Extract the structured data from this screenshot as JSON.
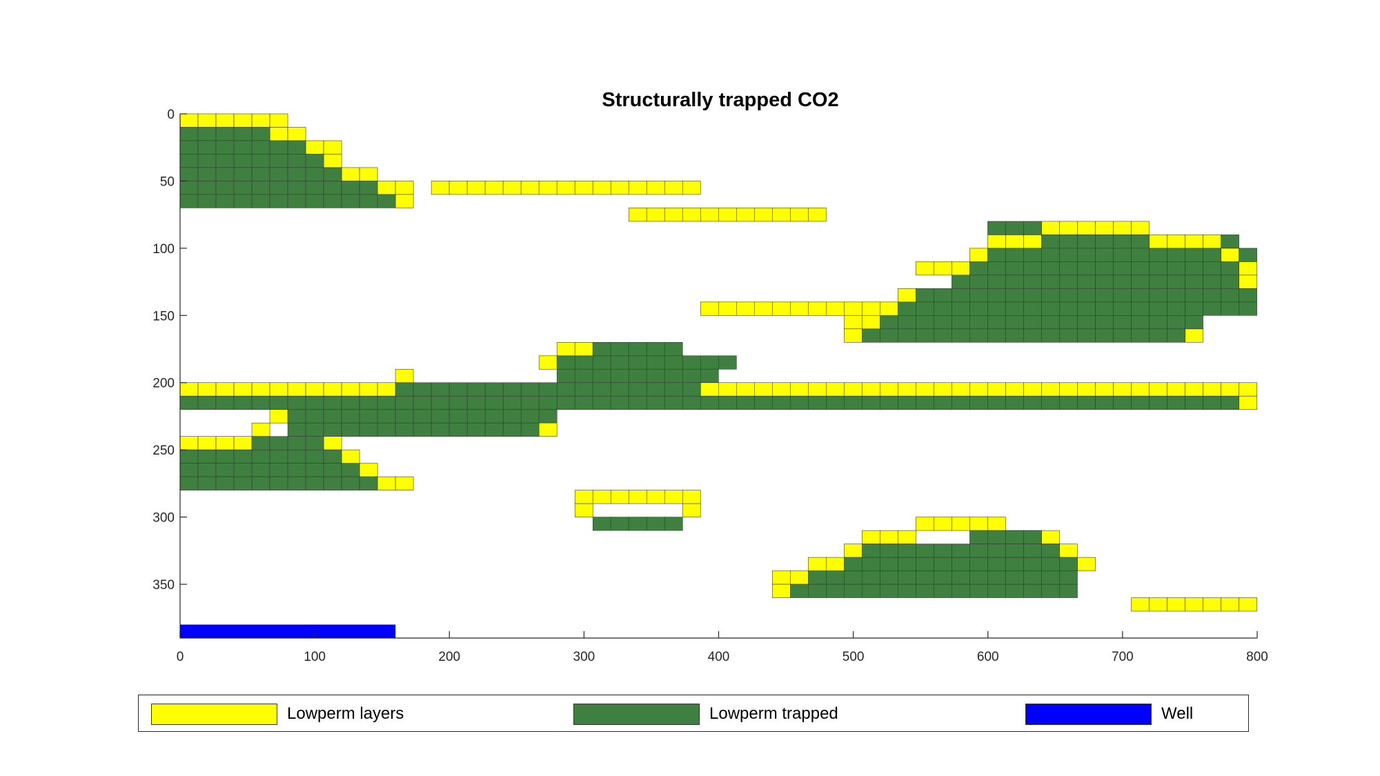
{
  "chart_data": {
    "type": "heatmap",
    "title": "Structurally trapped CO2",
    "xlim": [
      0,
      800
    ],
    "ylim": [
      0,
      390
    ],
    "y_reversed": true,
    "xticks": [
      0,
      100,
      200,
      300,
      400,
      500,
      600,
      700,
      800
    ],
    "yticks": [
      0,
      50,
      100,
      150,
      200,
      250,
      300,
      350
    ],
    "cell_size": {
      "dx": 13.33,
      "dy": 10
    },
    "colors": {
      "Lowperm layers": "#ffff00",
      "Lowperm trapped": "#3f7f3f",
      "Well": "#0000ff"
    },
    "legend": {
      "location": "bottom",
      "entries": [
        {
          "label": "Lowperm layers",
          "color": "#ffff00"
        },
        {
          "label": "Lowperm trapped",
          "color": "#3f7f3f"
        },
        {
          "label": "Well",
          "color": "#0000ff"
        }
      ]
    },
    "series": [
      {
        "name": "Lowperm layers",
        "color": "#ffff00",
        "cells": [
          [
            0,
            0,
            0,
            5
          ],
          [
            1,
            5,
            1,
            6
          ],
          [
            2,
            7,
            2,
            8
          ],
          [
            3,
            8,
            3,
            8
          ],
          [
            4,
            9,
            4,
            10
          ],
          [
            5,
            11,
            5,
            12
          ],
          [
            5,
            14,
            5,
            28
          ],
          [
            6,
            12,
            6,
            12
          ],
          [
            7,
            25,
            7,
            35
          ],
          [
            8,
            48,
            8,
            53
          ],
          [
            9,
            45,
            9,
            47
          ],
          [
            9,
            54,
            9,
            57
          ],
          [
            10,
            44,
            10,
            44
          ],
          [
            10,
            58,
            10,
            58
          ],
          [
            11,
            41,
            11,
            43
          ],
          [
            11,
            59,
            11,
            59
          ],
          [
            12,
            59,
            12,
            59
          ],
          [
            13,
            40,
            13,
            44
          ],
          [
            14,
            29,
            14,
            39
          ],
          [
            15,
            37,
            15,
            38
          ],
          [
            16,
            37,
            16,
            37
          ],
          [
            16,
            56,
            16,
            56
          ],
          [
            17,
            21,
            17,
            26
          ],
          [
            18,
            20,
            18,
            20
          ],
          [
            18,
            27,
            18,
            27
          ],
          [
            19,
            12,
            19,
            12
          ],
          [
            19,
            28,
            19,
            28
          ],
          [
            20,
            0,
            20,
            11
          ],
          [
            20,
            29,
            20,
            59
          ],
          [
            21,
            59,
            21,
            59
          ],
          [
            22,
            5,
            22,
            5
          ],
          [
            23,
            4,
            23,
            4
          ],
          [
            23,
            20,
            23,
            20
          ],
          [
            24,
            0,
            24,
            3
          ],
          [
            24,
            8,
            24,
            8
          ],
          [
            25,
            9,
            25,
            9
          ],
          [
            26,
            10,
            26,
            10
          ],
          [
            27,
            11,
            27,
            12
          ],
          [
            28,
            22,
            28,
            28
          ],
          [
            29,
            22,
            29,
            22
          ],
          [
            29,
            28,
            29,
            28
          ],
          [
            30,
            41,
            30,
            45
          ],
          [
            31,
            38,
            31,
            40
          ],
          [
            31,
            46,
            31,
            48
          ],
          [
            32,
            37,
            32,
            37
          ],
          [
            32,
            49,
            32,
            49
          ],
          [
            33,
            35,
            33,
            36
          ],
          [
            33,
            50,
            33,
            50
          ],
          [
            34,
            33,
            34,
            34
          ],
          [
            35,
            33,
            35,
            33
          ],
          [
            36,
            53,
            36,
            59
          ]
        ]
      },
      {
        "name": "Lowperm trapped",
        "color": "#3f7f3f",
        "cells": [
          [
            1,
            0,
            1,
            4
          ],
          [
            2,
            0,
            2,
            6
          ],
          [
            3,
            0,
            3,
            7
          ],
          [
            4,
            0,
            4,
            8
          ],
          [
            5,
            0,
            5,
            10
          ],
          [
            6,
            0,
            6,
            11
          ],
          [
            8,
            45,
            8,
            47
          ],
          [
            9,
            48,
            9,
            53
          ],
          [
            9,
            58,
            9,
            58
          ],
          [
            10,
            45,
            10,
            57
          ],
          [
            10,
            59,
            10,
            59
          ],
          [
            11,
            44,
            11,
            58
          ],
          [
            12,
            43,
            12,
            58
          ],
          [
            13,
            41,
            13,
            59
          ],
          [
            14,
            40,
            14,
            59
          ],
          [
            15,
            39,
            15,
            56
          ],
          [
            16,
            38,
            16,
            55
          ],
          [
            17,
            23,
            17,
            27
          ],
          [
            18,
            21,
            18,
            30
          ],
          [
            19,
            21,
            19,
            29
          ],
          [
            20,
            12,
            20,
            28
          ],
          [
            21,
            0,
            21,
            58
          ],
          [
            22,
            6,
            22,
            20
          ],
          [
            23,
            6,
            23,
            19
          ],
          [
            24,
            4,
            24,
            7
          ],
          [
            25,
            0,
            25,
            8
          ],
          [
            26,
            0,
            26,
            9
          ],
          [
            27,
            0,
            27,
            10
          ],
          [
            30,
            23,
            30,
            27
          ],
          [
            31,
            44,
            31,
            47
          ],
          [
            32,
            38,
            32,
            48
          ],
          [
            33,
            37,
            33,
            49
          ],
          [
            34,
            35,
            34,
            49
          ],
          [
            35,
            34,
            35,
            49
          ]
        ]
      },
      {
        "name": "Well",
        "color": "#0000ff",
        "rect": {
          "x": [
            0,
            160
          ],
          "y": [
            380,
            390
          ]
        }
      }
    ]
  }
}
